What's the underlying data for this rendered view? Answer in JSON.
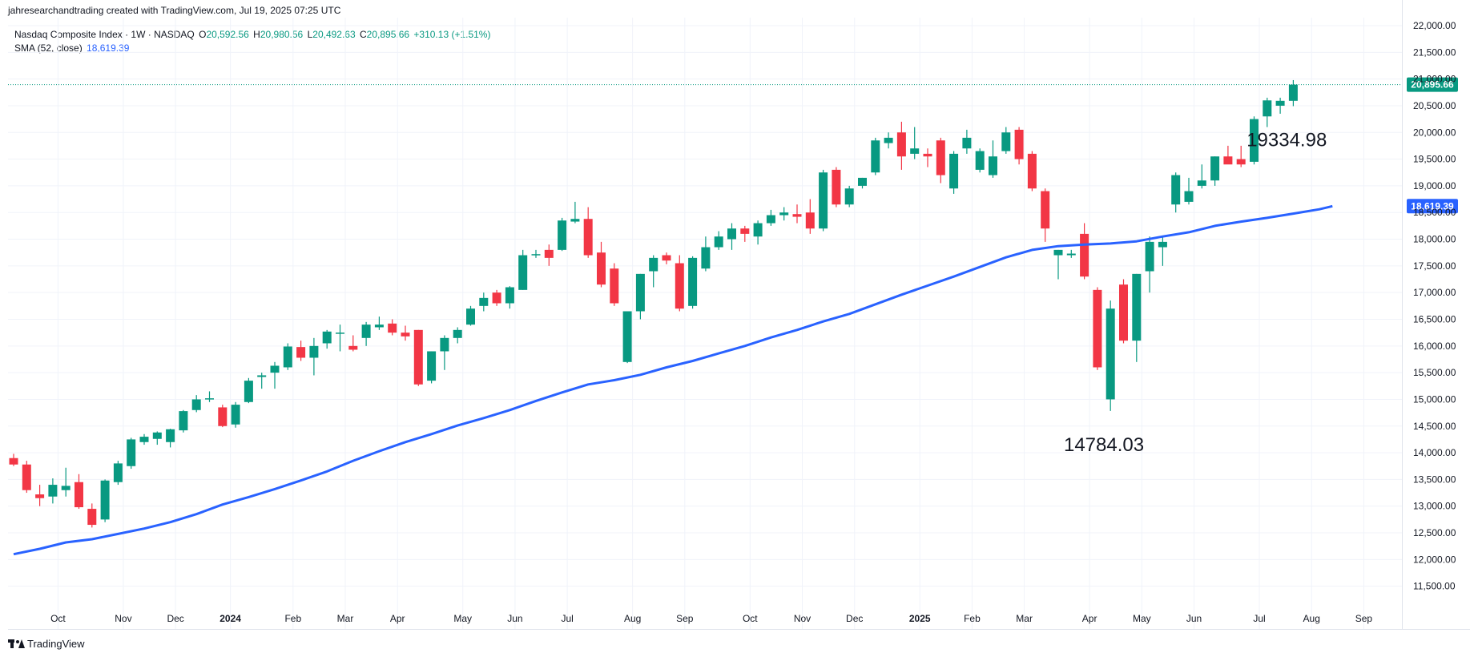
{
  "header": {
    "credit": "jahresearchandtrading created with TradingView.com, Jul 19, 2025 07:25 UTC"
  },
  "legend": {
    "symbol": "Nasdaq Composite Index · 1W · NASDAQ",
    "o_label": "O",
    "o_value": "20,592.56",
    "h_label": "H",
    "h_value": "20,980.56",
    "l_label": "L",
    "l_value": "20,492.63",
    "c_label": "C",
    "c_value": "20,895.66",
    "change": "+310.13 (+1.51%)",
    "sma_label": "SMA (52, close)",
    "sma_value": "18,619.39"
  },
  "footer": {
    "logo_text": "TradingView"
  },
  "colors": {
    "up": "#089981",
    "down": "#f23645",
    "sma": "#2962ff",
    "grid": "#f0f3fa",
    "axis_text": "#131722"
  },
  "chart_data": {
    "type": "candlestick",
    "interval": "1W",
    "y_axis": {
      "position": "right",
      "range": [
        11150,
        22150
      ],
      "ticks": [
        "11,500.00",
        "12,000.00",
        "12,500.00",
        "13,000.00",
        "13,500.00",
        "14,000.00",
        "14,500.00",
        "15,000.00",
        "15,500.00",
        "16,000.00",
        "16,500.00",
        "17,000.00",
        "17,500.00",
        "18,000.00",
        "18,500.00",
        "19,000.00",
        "19,500.00",
        "20,000.00",
        "20,500.00",
        "21,000.00",
        "21,500.00",
        "22,000.00"
      ]
    },
    "x_axis": {
      "labels": [
        {
          "text": "Oct",
          "i": 3.4,
          "bold": false
        },
        {
          "text": "Nov",
          "i": 8.4,
          "bold": false
        },
        {
          "text": "Dec",
          "i": 12.4,
          "bold": false
        },
        {
          "text": "2024",
          "i": 16.6,
          "bold": true
        },
        {
          "text": "Feb",
          "i": 21.4,
          "bold": false
        },
        {
          "text": "Mar",
          "i": 25.4,
          "bold": false
        },
        {
          "text": "Apr",
          "i": 29.4,
          "bold": false
        },
        {
          "text": "May",
          "i": 34.4,
          "bold": false
        },
        {
          "text": "Jun",
          "i": 38.4,
          "bold": false
        },
        {
          "text": "Jul",
          "i": 42.4,
          "bold": false
        },
        {
          "text": "Aug",
          "i": 47.4,
          "bold": false
        },
        {
          "text": "Sep",
          "i": 51.4,
          "bold": false
        },
        {
          "text": "Oct",
          "i": 56.4,
          "bold": false
        },
        {
          "text": "Nov",
          "i": 60.4,
          "bold": false
        },
        {
          "text": "Dec",
          "i": 64.4,
          "bold": false
        },
        {
          "text": "2025",
          "i": 69.4,
          "bold": true
        },
        {
          "text": "Feb",
          "i": 73.4,
          "bold": false
        },
        {
          "text": "Mar",
          "i": 77.4,
          "bold": false
        },
        {
          "text": "Apr",
          "i": 82.4,
          "bold": false
        },
        {
          "text": "May",
          "i": 86.4,
          "bold": false
        },
        {
          "text": "Jun",
          "i": 90.4,
          "bold": false
        },
        {
          "text": "Jul",
          "i": 95.4,
          "bold": false
        },
        {
          "text": "Aug",
          "i": 99.4,
          "bold": false
        },
        {
          "text": "Sep",
          "i": 103.4,
          "bold": false
        }
      ]
    },
    "candles": [
      {
        "o": 13900,
        "h": 13980,
        "l": 13750,
        "c": 13780
      },
      {
        "o": 13780,
        "h": 13850,
        "l": 13250,
        "c": 13300
      },
      {
        "o": 13220,
        "h": 13400,
        "l": 13000,
        "c": 13150
      },
      {
        "o": 13180,
        "h": 13520,
        "l": 13050,
        "c": 13400
      },
      {
        "o": 13300,
        "h": 13720,
        "l": 13180,
        "c": 13380
      },
      {
        "o": 13450,
        "h": 13600,
        "l": 12950,
        "c": 12980
      },
      {
        "o": 12950,
        "h": 13050,
        "l": 12600,
        "c": 12650
      },
      {
        "o": 12750,
        "h": 13500,
        "l": 12700,
        "c": 13480
      },
      {
        "o": 13450,
        "h": 13850,
        "l": 13400,
        "c": 13800
      },
      {
        "o": 13750,
        "h": 14280,
        "l": 13700,
        "c": 14250
      },
      {
        "o": 14200,
        "h": 14350,
        "l": 14150,
        "c": 14300
      },
      {
        "o": 14260,
        "h": 14400,
        "l": 14150,
        "c": 14380
      },
      {
        "o": 14200,
        "h": 14450,
        "l": 14100,
        "c": 14440
      },
      {
        "o": 14420,
        "h": 14800,
        "l": 14380,
        "c": 14780
      },
      {
        "o": 14800,
        "h": 15080,
        "l": 14760,
        "c": 15000
      },
      {
        "o": 15000,
        "h": 15150,
        "l": 14950,
        "c": 15020
      },
      {
        "o": 14850,
        "h": 14900,
        "l": 14480,
        "c": 14500
      },
      {
        "o": 14530,
        "h": 14950,
        "l": 14470,
        "c": 14900
      },
      {
        "o": 14950,
        "h": 15400,
        "l": 14930,
        "c": 15350
      },
      {
        "o": 15420,
        "h": 15500,
        "l": 15200,
        "c": 15450
      },
      {
        "o": 15500,
        "h": 15700,
        "l": 15200,
        "c": 15630
      },
      {
        "o": 15600,
        "h": 16050,
        "l": 15550,
        "c": 15990
      },
      {
        "o": 15980,
        "h": 16100,
        "l": 15720,
        "c": 15780
      },
      {
        "o": 15780,
        "h": 16150,
        "l": 15450,
        "c": 16000
      },
      {
        "o": 16050,
        "h": 16300,
        "l": 15950,
        "c": 16270
      },
      {
        "o": 16250,
        "h": 16400,
        "l": 15900,
        "c": 16250
      },
      {
        "o": 16000,
        "h": 16200,
        "l": 15900,
        "c": 15930
      },
      {
        "o": 16150,
        "h": 16450,
        "l": 16000,
        "c": 16400
      },
      {
        "o": 16350,
        "h": 16550,
        "l": 16300,
        "c": 16400
      },
      {
        "o": 16420,
        "h": 16500,
        "l": 16200,
        "c": 16250
      },
      {
        "o": 16250,
        "h": 16380,
        "l": 16100,
        "c": 16180
      },
      {
        "o": 16300,
        "h": 16300,
        "l": 15250,
        "c": 15280
      },
      {
        "o": 15350,
        "h": 15900,
        "l": 15300,
        "c": 15900
      },
      {
        "o": 15900,
        "h": 16200,
        "l": 15550,
        "c": 16150
      },
      {
        "o": 16150,
        "h": 16350,
        "l": 16050,
        "c": 16300
      },
      {
        "o": 16400,
        "h": 16750,
        "l": 16380,
        "c": 16700
      },
      {
        "o": 16750,
        "h": 17000,
        "l": 16650,
        "c": 16900
      },
      {
        "o": 17000,
        "h": 17050,
        "l": 16750,
        "c": 16800
      },
      {
        "o": 16800,
        "h": 17120,
        "l": 16700,
        "c": 17100
      },
      {
        "o": 17050,
        "h": 17800,
        "l": 17050,
        "c": 17700
      },
      {
        "o": 17700,
        "h": 17800,
        "l": 17650,
        "c": 17720
      },
      {
        "o": 17800,
        "h": 17900,
        "l": 17500,
        "c": 17650
      },
      {
        "o": 17800,
        "h": 18400,
        "l": 17780,
        "c": 18350
      },
      {
        "o": 18330,
        "h": 18700,
        "l": 18300,
        "c": 18380
      },
      {
        "o": 18380,
        "h": 18600,
        "l": 17650,
        "c": 17700
      },
      {
        "o": 17750,
        "h": 17950,
        "l": 17100,
        "c": 17150
      },
      {
        "o": 17450,
        "h": 17550,
        "l": 16750,
        "c": 16800
      },
      {
        "o": 15700,
        "h": 16650,
        "l": 15680,
        "c": 16650
      },
      {
        "o": 16650,
        "h": 17350,
        "l": 16500,
        "c": 17350
      },
      {
        "o": 17400,
        "h": 17700,
        "l": 17100,
        "c": 17650
      },
      {
        "o": 17700,
        "h": 17750,
        "l": 17530,
        "c": 17600
      },
      {
        "o": 17550,
        "h": 17700,
        "l": 16650,
        "c": 16700
      },
      {
        "o": 16750,
        "h": 17680,
        "l": 16700,
        "c": 17650
      },
      {
        "o": 17450,
        "h": 18050,
        "l": 17400,
        "c": 17850
      },
      {
        "o": 17850,
        "h": 18150,
        "l": 17800,
        "c": 18050
      },
      {
        "o": 18000,
        "h": 18300,
        "l": 17800,
        "c": 18200
      },
      {
        "o": 18200,
        "h": 18250,
        "l": 17950,
        "c": 18100
      },
      {
        "o": 18050,
        "h": 18350,
        "l": 17900,
        "c": 18300
      },
      {
        "o": 18300,
        "h": 18550,
        "l": 18250,
        "c": 18450
      },
      {
        "o": 18450,
        "h": 18600,
        "l": 18350,
        "c": 18500
      },
      {
        "o": 18470,
        "h": 18650,
        "l": 18300,
        "c": 18420
      },
      {
        "o": 18500,
        "h": 18750,
        "l": 18100,
        "c": 18200
      },
      {
        "o": 18200,
        "h": 19300,
        "l": 18150,
        "c": 19250
      },
      {
        "o": 19300,
        "h": 19350,
        "l": 18600,
        "c": 18650
      },
      {
        "o": 18650,
        "h": 19000,
        "l": 18600,
        "c": 18950
      },
      {
        "o": 19000,
        "h": 19150,
        "l": 18950,
        "c": 19150
      },
      {
        "o": 19250,
        "h": 19900,
        "l": 19200,
        "c": 19850
      },
      {
        "o": 19800,
        "h": 20000,
        "l": 19700,
        "c": 19900
      },
      {
        "o": 20000,
        "h": 20200,
        "l": 19300,
        "c": 19550
      },
      {
        "o": 19600,
        "h": 20100,
        "l": 19500,
        "c": 19700
      },
      {
        "o": 19600,
        "h": 19700,
        "l": 19350,
        "c": 19550
      },
      {
        "o": 19850,
        "h": 19900,
        "l": 19050,
        "c": 19200
      },
      {
        "o": 18950,
        "h": 19650,
        "l": 18850,
        "c": 19600
      },
      {
        "o": 19700,
        "h": 20050,
        "l": 19600,
        "c": 19900
      },
      {
        "o": 19300,
        "h": 19700,
        "l": 19250,
        "c": 19650
      },
      {
        "o": 19200,
        "h": 19850,
        "l": 19150,
        "c": 19550
      },
      {
        "o": 19650,
        "h": 20100,
        "l": 19600,
        "c": 20000
      },
      {
        "o": 20050,
        "h": 20100,
        "l": 19400,
        "c": 19500
      },
      {
        "o": 19600,
        "h": 19650,
        "l": 18900,
        "c": 18950
      },
      {
        "o": 18900,
        "h": 18950,
        "l": 17950,
        "c": 18200
      },
      {
        "o": 17700,
        "h": 17800,
        "l": 17250,
        "c": 17800
      },
      {
        "o": 17700,
        "h": 17800,
        "l": 17650,
        "c": 17730
      },
      {
        "o": 18100,
        "h": 18300,
        "l": 17250,
        "c": 17300
      },
      {
        "o": 17050,
        "h": 17100,
        "l": 15550,
        "c": 15600
      },
      {
        "o": 15000,
        "h": 16850,
        "l": 14784,
        "c": 16700
      },
      {
        "o": 17150,
        "h": 17250,
        "l": 16050,
        "c": 16100
      },
      {
        "o": 16100,
        "h": 17350,
        "l": 15700,
        "c": 17350
      },
      {
        "o": 17400,
        "h": 18050,
        "l": 17000,
        "c": 17950
      },
      {
        "o": 17850,
        "h": 18050,
        "l": 17500,
        "c": 17950
      },
      {
        "o": 18650,
        "h": 19250,
        "l": 18500,
        "c": 19200
      },
      {
        "o": 18700,
        "h": 19150,
        "l": 18650,
        "c": 18900
      },
      {
        "o": 19000,
        "h": 19400,
        "l": 18950,
        "c": 19100
      },
      {
        "o": 19100,
        "h": 19550,
        "l": 19000,
        "c": 19550
      },
      {
        "o": 19550,
        "h": 19750,
        "l": 19450,
        "c": 19400
      },
      {
        "o": 19500,
        "h": 19750,
        "l": 19350,
        "c": 19400
      },
      {
        "o": 19450,
        "h": 20300,
        "l": 19400,
        "c": 20250
      },
      {
        "o": 20300,
        "h": 20650,
        "l": 20100,
        "c": 20600
      },
      {
        "o": 20500,
        "h": 20650,
        "l": 20350,
        "c": 20592
      },
      {
        "o": 20592,
        "h": 20980,
        "l": 20492,
        "c": 20895
      }
    ],
    "sma": {
      "name": "SMA (52, close)",
      "points": [
        [
          0,
          12100
        ],
        [
          2,
          12200
        ],
        [
          4,
          12320
        ],
        [
          6,
          12380
        ],
        [
          8,
          12480
        ],
        [
          10,
          12580
        ],
        [
          12,
          12700
        ],
        [
          14,
          12850
        ],
        [
          16,
          13030
        ],
        [
          18,
          13170
        ],
        [
          20,
          13320
        ],
        [
          22,
          13480
        ],
        [
          24,
          13650
        ],
        [
          26,
          13850
        ],
        [
          28,
          14030
        ],
        [
          30,
          14200
        ],
        [
          32,
          14350
        ],
        [
          34,
          14510
        ],
        [
          36,
          14650
        ],
        [
          38,
          14800
        ],
        [
          40,
          14970
        ],
        [
          42,
          15130
        ],
        [
          44,
          15280
        ],
        [
          46,
          15360
        ],
        [
          48,
          15460
        ],
        [
          50,
          15600
        ],
        [
          52,
          15720
        ],
        [
          54,
          15860
        ],
        [
          56,
          16000
        ],
        [
          58,
          16160
        ],
        [
          60,
          16300
        ],
        [
          62,
          16460
        ],
        [
          64,
          16600
        ],
        [
          66,
          16780
        ],
        [
          68,
          16960
        ],
        [
          70,
          17130
        ],
        [
          72,
          17300
        ],
        [
          74,
          17480
        ],
        [
          76,
          17660
        ],
        [
          78,
          17800
        ],
        [
          80,
          17870
        ],
        [
          82,
          17900
        ],
        [
          84,
          17920
        ],
        [
          86,
          17960
        ],
        [
          88,
          18050
        ],
        [
          90,
          18130
        ],
        [
          92,
          18250
        ],
        [
          94,
          18330
        ],
        [
          96,
          18400
        ],
        [
          98,
          18480
        ],
        [
          100,
          18560
        ],
        [
          101,
          18619
        ]
      ]
    },
    "price_line": {
      "value": 20895.66,
      "label": "20,895.66"
    },
    "sma_label": {
      "value": 18619.39,
      "label": "18,619.39"
    },
    "annotations": [
      {
        "text": "19334.98",
        "i": 97.5,
        "value": 19334.98,
        "pos": "above"
      },
      {
        "text": "14784.03",
        "i": 83.5,
        "value": 14784.03,
        "pos": "below"
      }
    ]
  }
}
